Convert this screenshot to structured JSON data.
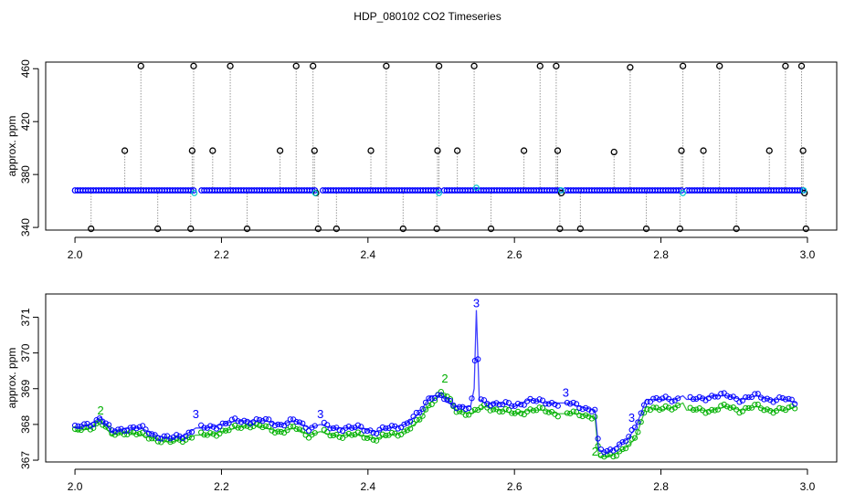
{
  "figure": {
    "title": "HDP_080102  CO2 Timeseries"
  },
  "chart_data": [
    {
      "type": "line",
      "ylabel": "approx. ppm",
      "xlabel": "",
      "xlim": [
        2.0,
        3.0
      ],
      "ylim": [
        338,
        465
      ],
      "x_ticks": [
        2.0,
        2.2,
        2.4,
        2.6,
        2.8,
        3.0
      ],
      "x_tick_labels": [
        "2.0",
        "2.2",
        "2.4",
        "2.6",
        "2.8",
        "3.0"
      ],
      "y_ticks": [
        340,
        380,
        420,
        460
      ],
      "y_tick_labels": [
        "340",
        "380",
        "420",
        "460"
      ],
      "grid": false,
      "colors": {
        "main": "#0000ff",
        "cyan": "#00c8c8",
        "spike": "#000000",
        "connector": "#9a9a9a"
      },
      "baseline": {
        "start": 2.0,
        "end": 2.995,
        "step": 0.0036,
        "level": 368,
        "gaps": [
          [
            2.165,
            2.172
          ],
          [
            2.33,
            2.336
          ],
          [
            2.497,
            2.503
          ],
          [
            2.664,
            2.668
          ],
          [
            2.83,
            2.835
          ]
        ]
      },
      "cyan_points": [
        {
          "x": 2.163,
          "y": 366
        },
        {
          "x": 2.328,
          "y": 366
        },
        {
          "x": 2.497,
          "y": 366
        },
        {
          "x": 2.548,
          "y": 370
        },
        {
          "x": 2.664,
          "y": 368
        },
        {
          "x": 2.83,
          "y": 366
        },
        {
          "x": 2.995,
          "y": 368
        }
      ],
      "spikes": [
        {
          "x": 2.022,
          "y": 339
        },
        {
          "x": 2.068,
          "y": 398
        },
        {
          "x": 2.09,
          "y": 462
        },
        {
          "x": 2.113,
          "y": 339
        },
        {
          "x": 2.158,
          "y": 339
        },
        {
          "x": 2.16,
          "y": 398
        },
        {
          "x": 2.162,
          "y": 462
        },
        {
          "x": 2.188,
          "y": 398
        },
        {
          "x": 2.212,
          "y": 462
        },
        {
          "x": 2.235,
          "y": 339
        },
        {
          "x": 2.28,
          "y": 398
        },
        {
          "x": 2.302,
          "y": 462
        },
        {
          "x": 2.325,
          "y": 462
        },
        {
          "x": 2.327,
          "y": 398
        },
        {
          "x": 2.329,
          "y": 366
        },
        {
          "x": 2.332,
          "y": 339
        },
        {
          "x": 2.357,
          "y": 339
        },
        {
          "x": 2.404,
          "y": 398
        },
        {
          "x": 2.425,
          "y": 462
        },
        {
          "x": 2.448,
          "y": 339
        },
        {
          "x": 2.494,
          "y": 339
        },
        {
          "x": 2.495,
          "y": 398
        },
        {
          "x": 2.497,
          "y": 462
        },
        {
          "x": 2.522,
          "y": 398
        },
        {
          "x": 2.545,
          "y": 462
        },
        {
          "x": 2.568,
          "y": 339
        },
        {
          "x": 2.613,
          "y": 398
        },
        {
          "x": 2.635,
          "y": 462
        },
        {
          "x": 2.657,
          "y": 462
        },
        {
          "x": 2.659,
          "y": 398
        },
        {
          "x": 2.662,
          "y": 339
        },
        {
          "x": 2.664,
          "y": 366
        },
        {
          "x": 2.69,
          "y": 339
        },
        {
          "x": 2.736,
          "y": 397
        },
        {
          "x": 2.758,
          "y": 461
        },
        {
          "x": 2.78,
          "y": 339
        },
        {
          "x": 2.826,
          "y": 339
        },
        {
          "x": 2.828,
          "y": 398
        },
        {
          "x": 2.83,
          "y": 462
        },
        {
          "x": 2.858,
          "y": 398
        },
        {
          "x": 2.88,
          "y": 462
        },
        {
          "x": 2.903,
          "y": 339
        },
        {
          "x": 2.948,
          "y": 398
        },
        {
          "x": 2.97,
          "y": 462
        },
        {
          "x": 2.992,
          "y": 462
        },
        {
          "x": 2.994,
          "y": 398
        },
        {
          "x": 2.996,
          "y": 366
        },
        {
          "x": 2.998,
          "y": 339
        }
      ]
    },
    {
      "type": "line",
      "ylabel": "approx. ppm",
      "xlabel": "",
      "xlim": [
        1.96,
        3.04
      ],
      "ylim": [
        366.95,
        371.65
      ],
      "x_ticks": [
        2.0,
        2.2,
        2.4,
        2.6,
        2.8,
        3.0
      ],
      "x_tick_labels": [
        "2.0",
        "2.2",
        "2.4",
        "2.6",
        "2.8",
        "3.0"
      ],
      "y_ticks": [
        367,
        368,
        369,
        370,
        371
      ],
      "y_tick_labels": [
        "367",
        "368",
        "369",
        "370",
        "371"
      ],
      "grid": false,
      "series": [
        {
          "symbol": "2",
          "color": "#00b000",
          "x": [
            2.0,
            2.02,
            2.035,
            2.05,
            2.07,
            2.09,
            2.11,
            2.13,
            2.15,
            2.165,
            2.18,
            2.2,
            2.22,
            2.24,
            2.26,
            2.28,
            2.3,
            2.32,
            2.335,
            2.35,
            2.37,
            2.39,
            2.41,
            2.43,
            2.45,
            2.47,
            2.485,
            2.5,
            2.51,
            2.52,
            2.54,
            2.56,
            2.58,
            2.6,
            2.62,
            2.64,
            2.66,
            2.67,
            2.69,
            2.71,
            2.715,
            2.725,
            2.74,
            2.755,
            2.765,
            2.78,
            2.8,
            2.82,
            2.83,
            2.835,
            2.85,
            2.87,
            2.89,
            2.91,
            2.93,
            2.95,
            2.97,
            2.985
          ],
          "y": [
            367.8,
            367.9,
            368.1,
            367.7,
            367.8,
            367.7,
            367.6,
            367.5,
            367.6,
            367.7,
            367.7,
            367.8,
            367.9,
            368.0,
            367.9,
            367.8,
            367.9,
            367.7,
            367.8,
            367.7,
            367.7,
            367.7,
            367.6,
            367.7,
            367.8,
            368.1,
            368.6,
            368.9,
            368.7,
            368.4,
            368.3,
            368.5,
            368.4,
            368.3,
            368.4,
            368.4,
            368.3,
            368.3,
            368.3,
            368.2,
            367.1,
            367.1,
            367.2,
            367.4,
            367.6,
            368.5,
            368.4,
            368.5,
            368.6,
            368.4,
            368.4,
            368.4,
            368.5,
            368.4,
            368.5,
            368.4,
            368.4,
            368.5
          ]
        },
        {
          "symbol": "3",
          "color": "#0000ff",
          "x": [
            2.0,
            2.02,
            2.035,
            2.05,
            2.07,
            2.09,
            2.11,
            2.13,
            2.15,
            2.165,
            2.18,
            2.2,
            2.22,
            2.24,
            2.26,
            2.28,
            2.3,
            2.32,
            2.335,
            2.35,
            2.37,
            2.39,
            2.41,
            2.43,
            2.45,
            2.47,
            2.485,
            2.5,
            2.51,
            2.52,
            2.54,
            2.545,
            2.548,
            2.552,
            2.56,
            2.58,
            2.6,
            2.62,
            2.64,
            2.66,
            2.67,
            2.69,
            2.71,
            2.715,
            2.725,
            2.74,
            2.755,
            2.765,
            2.78,
            2.8,
            2.82,
            2.83,
            2.835,
            2.85,
            2.87,
            2.89,
            2.91,
            2.93,
            2.95,
            2.97,
            2.985
          ],
          "y": [
            367.9,
            368.0,
            368.2,
            367.8,
            367.9,
            367.9,
            367.7,
            367.6,
            367.7,
            367.9,
            367.9,
            368.0,
            368.1,
            368.1,
            368.1,
            368.0,
            368.1,
            367.9,
            368.0,
            367.9,
            367.9,
            367.9,
            367.8,
            367.9,
            368.0,
            368.3,
            368.8,
            368.8,
            368.6,
            368.5,
            368.5,
            369.0,
            371.2,
            368.7,
            368.6,
            368.6,
            368.5,
            368.7,
            368.6,
            368.6,
            368.6,
            368.5,
            368.4,
            367.3,
            367.2,
            367.4,
            367.6,
            367.9,
            368.7,
            368.7,
            368.7,
            368.8,
            368.7,
            368.7,
            368.8,
            368.8,
            368.7,
            368.8,
            368.7,
            368.7,
            368.6
          ]
        }
      ],
      "labels_3": [
        {
          "x": 2.548,
          "y": 371.2,
          "text": "3"
        },
        {
          "x": 2.165,
          "y": 368.1,
          "text": "3"
        },
        {
          "x": 2.335,
          "y": 368.1,
          "text": "3"
        },
        {
          "x": 2.67,
          "y": 368.7,
          "text": "3"
        },
        {
          "x": 2.76,
          "y": 368.0,
          "text": "3"
        }
      ],
      "labels_2": [
        {
          "x": 2.505,
          "y": 369.1,
          "text": "2"
        },
        {
          "x": 2.035,
          "y": 368.2,
          "text": "2"
        },
        {
          "x": 2.71,
          "y": 367.05,
          "text": "2"
        }
      ]
    }
  ]
}
